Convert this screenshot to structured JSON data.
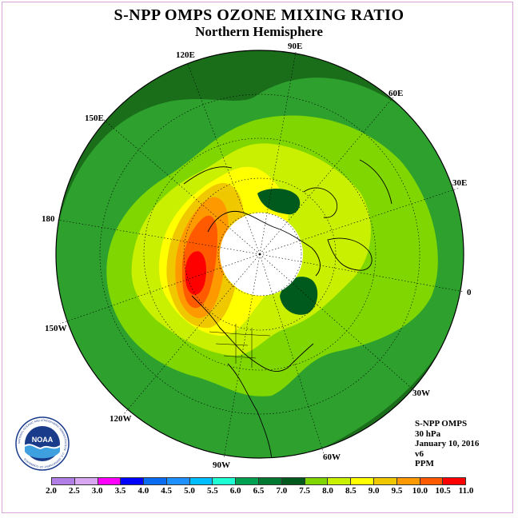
{
  "title": "S-NPP OMPS OZONE MIXING RATIO",
  "subtitle": "Northern Hemisphere",
  "longitude_labels": {
    "lon_90e": "90E",
    "lon_60e": "60E",
    "lon_30e": "30E",
    "lon_0": "0",
    "lon_30w": "30W",
    "lon_60w": "60W",
    "lon_90w": "90W",
    "lon_120w": "120W",
    "lon_150w": "150W",
    "lon_180": "180",
    "lon_150e": "150E",
    "lon_120e": "120E"
  },
  "info": {
    "instrument": "S-NPP OMPS",
    "level": "30 hPa",
    "date": "January 10, 2016",
    "version": "v6",
    "units": "PPM"
  },
  "logo": {
    "text": "NOAA",
    "ring_text": "NATIONAL OCEANIC AND ATMOSPHERIC ADMINISTRATION · U.S. DEPARTMENT OF COMMERCE"
  },
  "legend": {
    "ticks": [
      "2.0",
      "2.5",
      "3.0",
      "3.5",
      "4.0",
      "4.5",
      "5.0",
      "5.5",
      "6.0",
      "6.5",
      "7.0",
      "7.5",
      "8.0",
      "8.5",
      "9.0",
      "9.5",
      "10.0",
      "10.5",
      "11.0"
    ],
    "colors": [
      "#b27fe6",
      "#d9a6f2",
      "#ff00ff",
      "#0000ff",
      "#0a6cf0",
      "#1e90ff",
      "#00bfff",
      "#1fffd4",
      "#00a050",
      "#007832",
      "#005a1e",
      "#7fd600",
      "#c8f000",
      "#ffff00",
      "#f0c800",
      "#ff9900",
      "#ff5a00",
      "#ff0000",
      "#8b4513"
    ]
  },
  "map_fills": {
    "ocean_ring": "#1a6e1a",
    "mid_green": "#2ea02e",
    "light_green": "#7fd600",
    "yellow_green": "#c8f000",
    "yellow": "#ffff00",
    "gold": "#f0c800",
    "orange": "#ff9900",
    "dark_orange": "#ff5a00",
    "red": "#ff0000",
    "cyan": "#1fffd4",
    "pole_gap": "#ffffff"
  }
}
